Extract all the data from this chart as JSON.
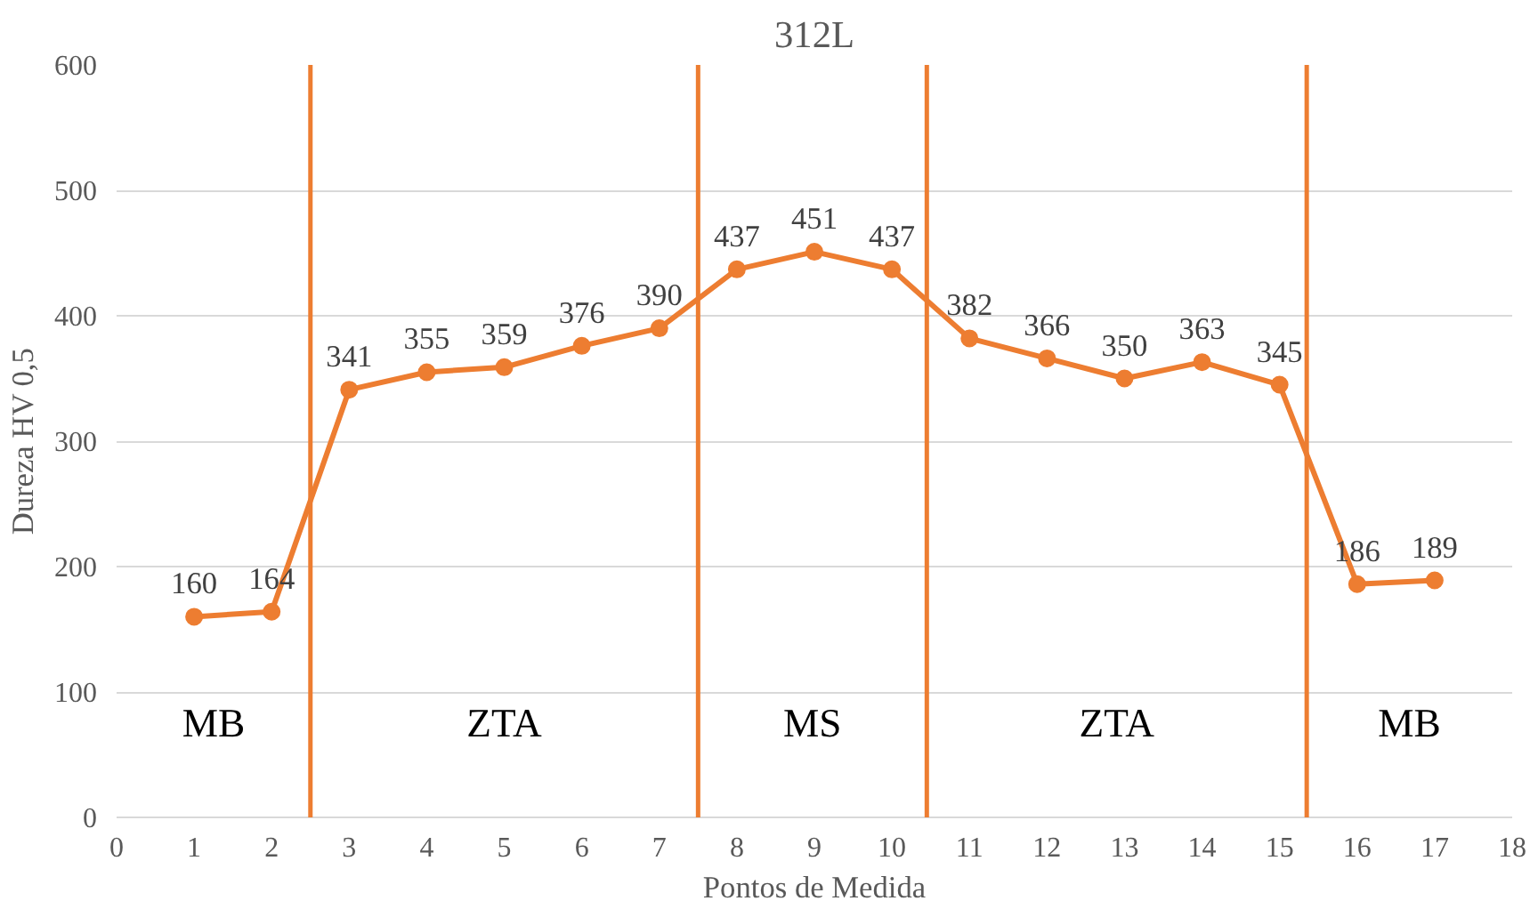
{
  "chart_data": {
    "type": "line",
    "title": "312L",
    "xlabel": "Pontos de Medida",
    "ylabel": "Dureza HV 0,5",
    "x": [
      1,
      2,
      3,
      4,
      5,
      6,
      7,
      8,
      9,
      10,
      11,
      12,
      13,
      14,
      15,
      16,
      17
    ],
    "series": [
      {
        "color": "#ed7d31",
        "values": [
          160,
          164,
          341,
          355,
          359,
          376,
          390,
          437,
          451,
          437,
          382,
          366,
          350,
          363,
          345,
          186,
          189
        ]
      }
    ],
    "data_labels": true,
    "marker": "circle",
    "line_style": "solid",
    "grid": "y",
    "xlim": [
      0,
      18
    ],
    "xticks": [
      0,
      1,
      2,
      3,
      4,
      5,
      6,
      7,
      8,
      9,
      10,
      11,
      12,
      13,
      14,
      15,
      16,
      17,
      18
    ],
    "ylim": [
      0,
      600
    ],
    "yticks": [
      0,
      100,
      200,
      300,
      400,
      500,
      600
    ],
    "ref_lines": [
      {
        "axis": "x",
        "value": 2.5,
        "color": "#ed7d31"
      },
      {
        "axis": "x",
        "value": 7.5,
        "color": "#ed7d31"
      },
      {
        "axis": "x",
        "value": 10.45,
        "color": "#ed7d31"
      },
      {
        "axis": "x",
        "value": 15.35,
        "color": "#ed7d31"
      }
    ],
    "annotations": [
      "MB",
      "ZTA",
      "MS",
      "ZTA",
      "MB"
    ]
  }
}
